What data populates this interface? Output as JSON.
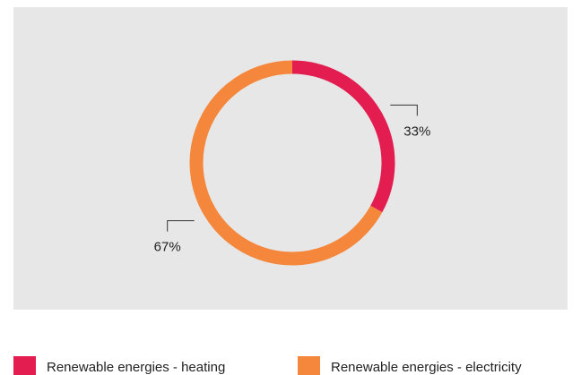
{
  "chart_data": {
    "type": "donut",
    "categories": [
      "Renewable energies - heating",
      "Renewable energies - electricity"
    ],
    "values": [
      33,
      67
    ],
    "value_labels": [
      "33%",
      "67%"
    ],
    "colors": [
      "#e31d4f",
      "#f5873c"
    ],
    "legend": "bottom"
  }
}
